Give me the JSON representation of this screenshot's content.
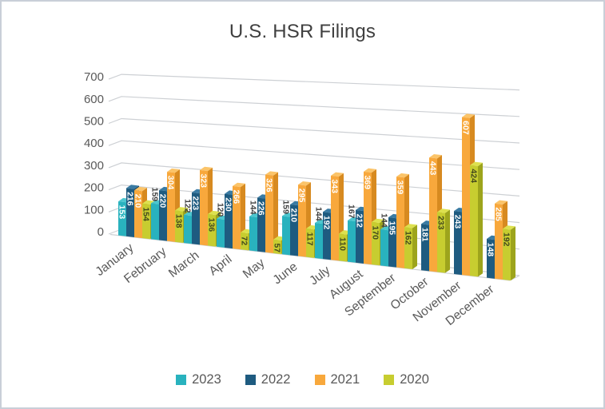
{
  "title": "U.S. HSR Filings",
  "chart_data": {
    "type": "bar",
    "style": "3d-clustered-column",
    "title": "U.S. HSR Filings",
    "categories": [
      "January",
      "February",
      "March",
      "April",
      "May",
      "June",
      "July",
      "August",
      "September",
      "October",
      "November",
      "December"
    ],
    "series": [
      {
        "name": "2023",
        "color": "#29b2be",
        "top_color": "#4cc6cf",
        "side_color": "#1b8e99",
        "label_color": "#ffffff",
        "values": [
          153,
          159,
          122,
          120,
          144,
          159,
          144,
          167,
          144,
          null,
          null,
          null
        ],
        "label_placement": [
          "inside",
          "outside",
          "outside",
          "outside",
          "outside",
          "outside",
          "outside",
          "outside",
          "outside",
          null,
          null,
          null
        ]
      },
      {
        "name": "2022",
        "color": "#1e5b80",
        "top_color": "#3a7ba3",
        "side_color": "#153f59",
        "label_color": "#ffffff",
        "values": [
          216,
          220,
          223,
          230,
          226,
          210,
          192,
          212,
          195,
          181,
          243,
          148
        ]
      },
      {
        "name": "2021",
        "color": "#f8a83c",
        "top_color": "#fbc469",
        "side_color": "#d78a20",
        "label_color": "#ffffff",
        "values": [
          210,
          304,
          323,
          266,
          326,
          295,
          343,
          369,
          359,
          443,
          607,
          285
        ]
      },
      {
        "name": "2020",
        "color": "#c7cd30",
        "top_color": "#dde14f",
        "side_color": "#9da41c",
        "label_color": "#43481d",
        "values": [
          154,
          138,
          136,
          72,
          57,
          117,
          110,
          170,
          162,
          233,
          424,
          192
        ]
      }
    ],
    "xlabel": "",
    "ylabel": "",
    "ylim": [
      0,
      700
    ],
    "yticks": [
      0,
      100,
      200,
      300,
      400,
      500,
      600,
      700
    ],
    "grid": true,
    "legend_position": "bottom",
    "outside_label_color": "#404040",
    "gridline_color": "#cdd0d4"
  }
}
